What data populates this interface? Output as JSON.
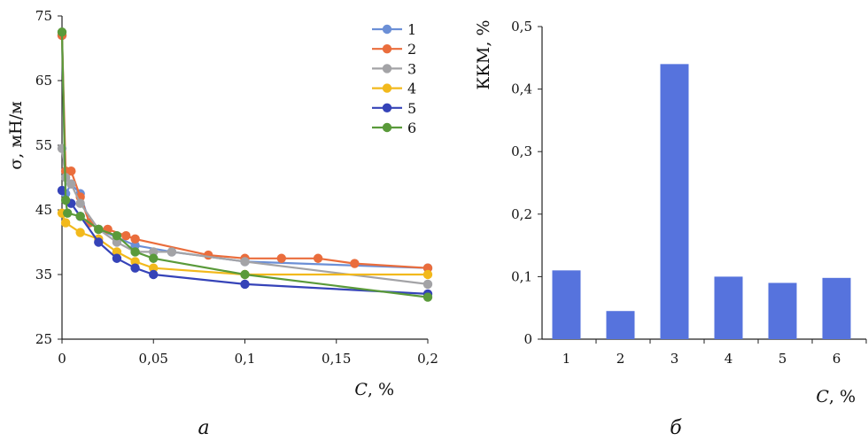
{
  "chart_data": [
    {
      "id": "a",
      "type": "line",
      "panel_label": "а",
      "ylabel": "σ, мН/м",
      "xlabel_italic": "C",
      "xlabel_rest": ", %",
      "xlim": [
        0,
        0.2
      ],
      "ylim": [
        25,
        75
      ],
      "xticks": [
        0,
        0.05,
        0.1,
        0.15,
        0.2
      ],
      "xtick_labels": [
        "0",
        "0,05",
        "0,1",
        "0,15",
        "0,2"
      ],
      "yticks": [
        25,
        35,
        45,
        55,
        65,
        75
      ],
      "ytick_labels": [
        "25",
        "35",
        "45",
        "55",
        "65",
        "75"
      ],
      "grid": false,
      "legend_position": "top-right",
      "series": [
        {
          "name": "1",
          "color": "#6b8fd6",
          "points": [
            [
              0,
              72
            ],
            [
              0.002,
              47.5
            ],
            [
              0.005,
              49
            ],
            [
              0.01,
              47.5
            ],
            [
              0.015,
              43
            ],
            [
              0.02,
              42
            ],
            [
              0.04,
              39.5
            ],
            [
              0.06,
              38.5
            ],
            [
              0.1,
              37
            ],
            [
              0.2,
              36
            ]
          ]
        },
        {
          "name": "2",
          "color": "#ea6d3c",
          "points": [
            [
              0,
              72
            ],
            [
              0.002,
              51
            ],
            [
              0.005,
              51
            ],
            [
              0.01,
              47
            ],
            [
              0.015,
              43
            ],
            [
              0.02,
              42
            ],
            [
              0.025,
              42
            ],
            [
              0.035,
              41
            ],
            [
              0.04,
              40.5
            ],
            [
              0.08,
              38
            ],
            [
              0.1,
              37.5
            ],
            [
              0.12,
              37.5
            ],
            [
              0.14,
              37.5
            ],
            [
              0.16,
              36.7
            ],
            [
              0.2,
              36
            ]
          ]
        },
        {
          "name": "3",
          "color": "#a3a3a6",
          "points": [
            [
              0,
              54.5
            ],
            [
              0.002,
              50
            ],
            [
              0.005,
              49
            ],
            [
              0.01,
              46
            ],
            [
              0.02,
              42
            ],
            [
              0.03,
              40
            ],
            [
              0.04,
              38.5
            ],
            [
              0.05,
              38.5
            ],
            [
              0.06,
              38.5
            ],
            [
              0.1,
              37
            ],
            [
              0.2,
              33.5
            ]
          ]
        },
        {
          "name": "4",
          "color": "#f2b91c",
          "points": [
            [
              0,
              44.5
            ],
            [
              0.002,
              43
            ],
            [
              0.01,
              41.5
            ],
            [
              0.02,
              40.5
            ],
            [
              0.03,
              38.5
            ],
            [
              0.04,
              37
            ],
            [
              0.05,
              36
            ],
            [
              0.1,
              35
            ],
            [
              0.2,
              35
            ]
          ]
        },
        {
          "name": "5",
          "color": "#3543b8",
          "points": [
            [
              0,
              48
            ],
            [
              0.005,
              46
            ],
            [
              0.01,
              44
            ],
            [
              0.02,
              40
            ],
            [
              0.03,
              37.5
            ],
            [
              0.04,
              36
            ],
            [
              0.05,
              35
            ],
            [
              0.1,
              33.5
            ],
            [
              0.2,
              32
            ]
          ]
        },
        {
          "name": "6",
          "color": "#5a9a3a",
          "points": [
            [
              0,
              72.5
            ],
            [
              0.002,
              46.5
            ],
            [
              0.003,
              44.5
            ],
            [
              0.01,
              44
            ],
            [
              0.02,
              42
            ],
            [
              0.03,
              41
            ],
            [
              0.04,
              38.5
            ],
            [
              0.05,
              37.5
            ],
            [
              0.1,
              35
            ],
            [
              0.2,
              31.5
            ]
          ]
        }
      ]
    },
    {
      "id": "b",
      "type": "bar",
      "panel_label": "б",
      "ylabel": "ККМ, %",
      "xlabel_italic": "C",
      "xlabel_rest": ", %",
      "categories": [
        "1",
        "2",
        "3",
        "4",
        "5",
        "6"
      ],
      "values": [
        0.11,
        0.045,
        0.44,
        0.1,
        0.09,
        0.098
      ],
      "ylim": [
        0,
        0.5
      ],
      "yticks": [
        0,
        0.1,
        0.2,
        0.3,
        0.4,
        0.5
      ],
      "ytick_labels": [
        "0",
        "0,1",
        "0,2",
        "0,3",
        "0,4",
        "0,5"
      ],
      "bar_color": "#5673dd",
      "grid": false
    }
  ]
}
